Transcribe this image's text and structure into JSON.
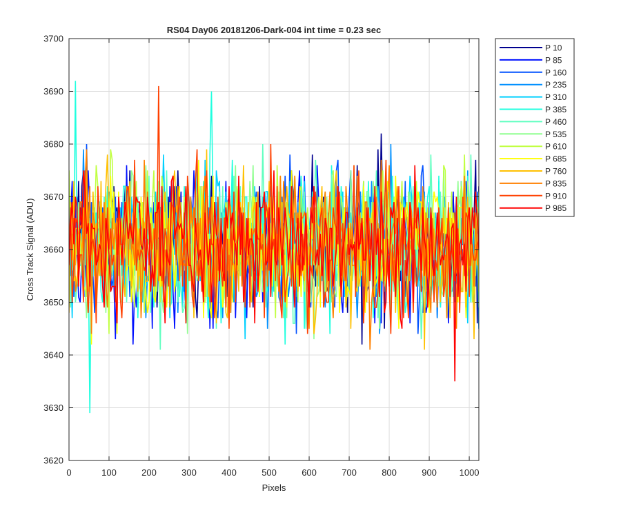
{
  "chart_data": {
    "type": "line",
    "title": "RS04 Day06 20181206-Dark-004 int time = 0.23 sec",
    "xlabel": "Pixels",
    "ylabel": "Cross Track Signal (ADU)",
    "xlim": [
      0,
      1024
    ],
    "ylim": [
      3620,
      3700
    ],
    "xticks": [
      0,
      100,
      200,
      300,
      400,
      500,
      600,
      700,
      800,
      900,
      1000
    ],
    "yticks": [
      3620,
      3630,
      3640,
      3650,
      3660,
      3670,
      3680,
      3690,
      3700
    ],
    "grid": true,
    "legend_position": "outside-top-right",
    "series": [
      {
        "name": "P 10",
        "color": "#00008f"
      },
      {
        "name": "P 85",
        "color": "#0010ff"
      },
      {
        "name": "P 160",
        "color": "#0050ff"
      },
      {
        "name": "P 235",
        "color": "#0090ff"
      },
      {
        "name": "P 310",
        "color": "#00d0ff"
      },
      {
        "name": "P 385",
        "color": "#20ffdf"
      },
      {
        "name": "P 460",
        "color": "#60ffc0"
      },
      {
        "name": "P 535",
        "color": "#90ff90"
      },
      {
        "name": "P 610",
        "color": "#c0ff40"
      },
      {
        "name": "P 685",
        "color": "#ffff00"
      },
      {
        "name": "P 760",
        "color": "#ffc000"
      },
      {
        "name": "P 835",
        "color": "#ff8000"
      },
      {
        "name": "P 910",
        "color": "#ff4000"
      },
      {
        "name": "P 985",
        "color": "#ff0000"
      }
    ],
    "signal_level": {
      "mean": 3661,
      "std": 7,
      "min": 3629,
      "max": 3692
    },
    "notable_points": [
      {
        "series": "P 385",
        "x": 16,
        "y": 3692
      },
      {
        "series": "P 385",
        "x": 50,
        "y": 3629
      },
      {
        "series": "P 910",
        "x": 222,
        "y": 3691
      },
      {
        "series": "P 385",
        "x": 355,
        "y": 3690
      },
      {
        "series": "P 985",
        "x": 962,
        "y": 3635
      }
    ]
  }
}
